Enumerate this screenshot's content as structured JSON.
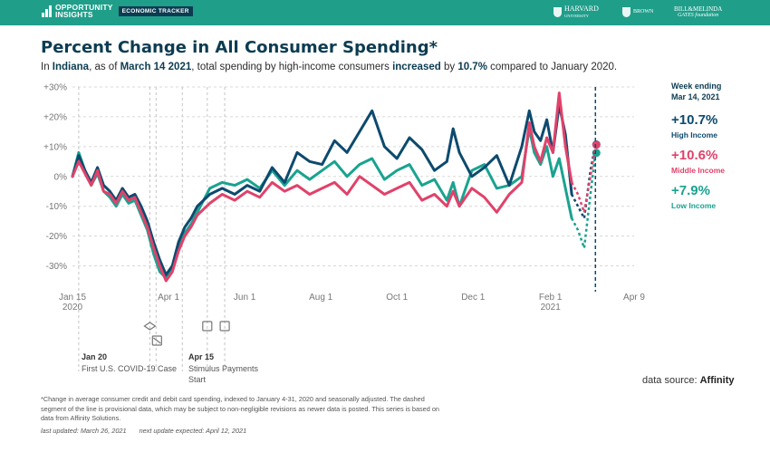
{
  "header": {
    "logo_line1": "OPPORTUNITY",
    "logo_line2": "INSIGHTS",
    "badge": "ECONOMIC TRACKER",
    "partner_harvard": "HARVARD",
    "partner_harvard_sub": "UNIVERSITY",
    "partner_brown": "BROWN",
    "partner_gates_line1": "BILL&MELINDA",
    "partner_gates_line2": "GATES foundation"
  },
  "title": "Percent Change in All Consumer Spending*",
  "subtitle": {
    "p1": "In ",
    "state": "Indiana",
    "p2": ", as of ",
    "date": "March 14 2021",
    "p3": ", total spending by high-income consumers ",
    "direction": "increased",
    "p4": " by ",
    "value": "10.7%",
    "p5": " compared to January 2020."
  },
  "summary": {
    "week_label_1": "Week ending",
    "week_label_2": "Mar 14, 2021",
    "high_value": "+10.7%",
    "high_label": "High Income",
    "middle_value": "+10.6%",
    "middle_label": "Middle Income",
    "low_value": "+7.9%",
    "low_label": "Low Income"
  },
  "colors": {
    "high": "#0c4a6e",
    "middle": "#e0426a",
    "low": "#19a38f",
    "brand": "#1f9e8a"
  },
  "events": [
    {
      "date": "Jan 20",
      "label": "First U.S. COVID-19 Case"
    },
    {
      "date": "Apr 15",
      "label": "Stimulus Payments Start"
    }
  ],
  "source_label": "data source:",
  "source_name": "Affinity",
  "footnote": "*Change in average consumer credit and debit card spending, indexed to January 4-31, 2020 and seasonally adjusted. The dashed segment of the line is provisional data, which may be subject to non-negligible revisions as newer data is posted. This series is based on data from Affinity Solutions.",
  "last_updated": "last updated: March 26, 2021",
  "next_update": "next update expected: April 12, 2021",
  "chart_data": {
    "type": "line",
    "title": "Percent Change in All Consumer Spending*",
    "xlabel": "",
    "ylabel": "",
    "ylim": [
      -35,
      30
    ],
    "y_ticks": [
      30,
      20,
      10,
      0,
      -10,
      -20,
      -30
    ],
    "y_tick_labels": [
      "+30%",
      "+20%",
      "+10%",
      "0%",
      "-10%",
      "-20%",
      "-30%"
    ],
    "x_tick_labels": [
      "Jan 15",
      "Apr 1",
      "Jun 1",
      "Aug 1",
      "Oct 1",
      "Dec 1",
      "Feb 1",
      "Apr 9"
    ],
    "x_tick_sublabels": [
      "2020",
      "",
      "",
      "",
      "",
      "",
      "2021",
      ""
    ],
    "x_tick_days": [
      0,
      77,
      138,
      199,
      260,
      321,
      383,
      450
    ],
    "grid": true,
    "vlines_days": [
      5,
      62,
      67,
      88,
      108,
      122
    ],
    "provisional_line_day": 419,
    "series": [
      {
        "name": "High Income",
        "x": [
          0,
          5,
          10,
          15,
          20,
          25,
          30,
          35,
          40,
          45,
          50,
          55,
          60,
          65,
          70,
          75,
          80,
          85,
          90,
          95,
          100,
          110,
          120,
          130,
          140,
          150,
          160,
          170,
          180,
          190,
          200,
          210,
          220,
          230,
          240,
          250,
          260,
          270,
          280,
          290,
          300,
          305,
          310,
          320,
          330,
          340,
          350,
          360,
          366,
          370,
          375,
          380,
          385,
          390,
          395,
          400,
          405,
          410,
          415,
          419
        ],
        "values": [
          0,
          7,
          2,
          -2,
          3,
          -3,
          -5,
          -8,
          -4,
          -7,
          -6,
          -10,
          -15,
          -22,
          -28,
          -33,
          -30,
          -22,
          -17,
          -14,
          -10,
          -6,
          -4,
          -6,
          -3,
          -5,
          3,
          -2,
          8,
          5,
          4,
          12,
          8,
          15,
          22,
          10,
          6,
          13,
          9,
          2,
          5,
          16,
          8,
          0,
          3,
          7,
          -3,
          10,
          22,
          15,
          12,
          19,
          8,
          24,
          14,
          -6,
          -10,
          -14,
          2,
          10.7
        ],
        "provisional_from_day": 400
      },
      {
        "name": "Middle Income",
        "x": [
          0,
          5,
          10,
          15,
          20,
          25,
          30,
          35,
          40,
          45,
          50,
          55,
          60,
          65,
          70,
          75,
          80,
          85,
          90,
          95,
          100,
          110,
          120,
          130,
          140,
          150,
          160,
          170,
          180,
          190,
          200,
          210,
          220,
          230,
          240,
          250,
          260,
          270,
          280,
          290,
          300,
          305,
          310,
          320,
          330,
          340,
          350,
          360,
          366,
          370,
          375,
          380,
          385,
          390,
          395,
          400,
          405,
          410,
          415,
          419
        ],
        "values": [
          0,
          5,
          1,
          -3,
          2,
          -5,
          -6,
          -9,
          -5,
          -8,
          -7,
          -12,
          -17,
          -24,
          -30,
          -35,
          -32,
          -25,
          -20,
          -17,
          -13,
          -9,
          -6,
          -8,
          -5,
          -7,
          -2,
          -5,
          -3,
          -6,
          -4,
          -2,
          -6,
          0,
          -3,
          -6,
          -4,
          -2,
          -8,
          -6,
          -10,
          -5,
          -10,
          -4,
          -7,
          -12,
          -6,
          -2,
          18,
          10,
          5,
          13,
          8,
          28,
          10,
          -2,
          -6,
          -12,
          0,
          10.6
        ],
        "provisional_from_day": 400
      },
      {
        "name": "Low Income",
        "x": [
          0,
          5,
          10,
          15,
          20,
          25,
          30,
          35,
          40,
          45,
          50,
          55,
          60,
          65,
          70,
          75,
          80,
          85,
          90,
          95,
          100,
          110,
          120,
          130,
          140,
          150,
          160,
          170,
          180,
          190,
          200,
          210,
          220,
          230,
          240,
          250,
          260,
          270,
          280,
          290,
          300,
          305,
          310,
          320,
          330,
          340,
          350,
          360,
          366,
          370,
          375,
          380,
          385,
          390,
          395,
          400,
          405,
          410,
          415,
          419
        ],
        "values": [
          0,
          8,
          2,
          -3,
          1,
          -5,
          -7,
          -10,
          -6,
          -9,
          -8,
          -13,
          -18,
          -26,
          -32,
          -34,
          -31,
          -24,
          -19,
          -16,
          -12,
          -4,
          -2,
          -3,
          -1,
          -4,
          2,
          -3,
          2,
          -1,
          2,
          5,
          0,
          4,
          6,
          -1,
          2,
          4,
          -3,
          -1,
          -8,
          -2,
          -10,
          2,
          4,
          -4,
          -3,
          0,
          16,
          8,
          4,
          10,
          0,
          6,
          -4,
          -14,
          -18,
          -24,
          -6,
          7.9
        ],
        "provisional_from_day": 400
      }
    ]
  }
}
